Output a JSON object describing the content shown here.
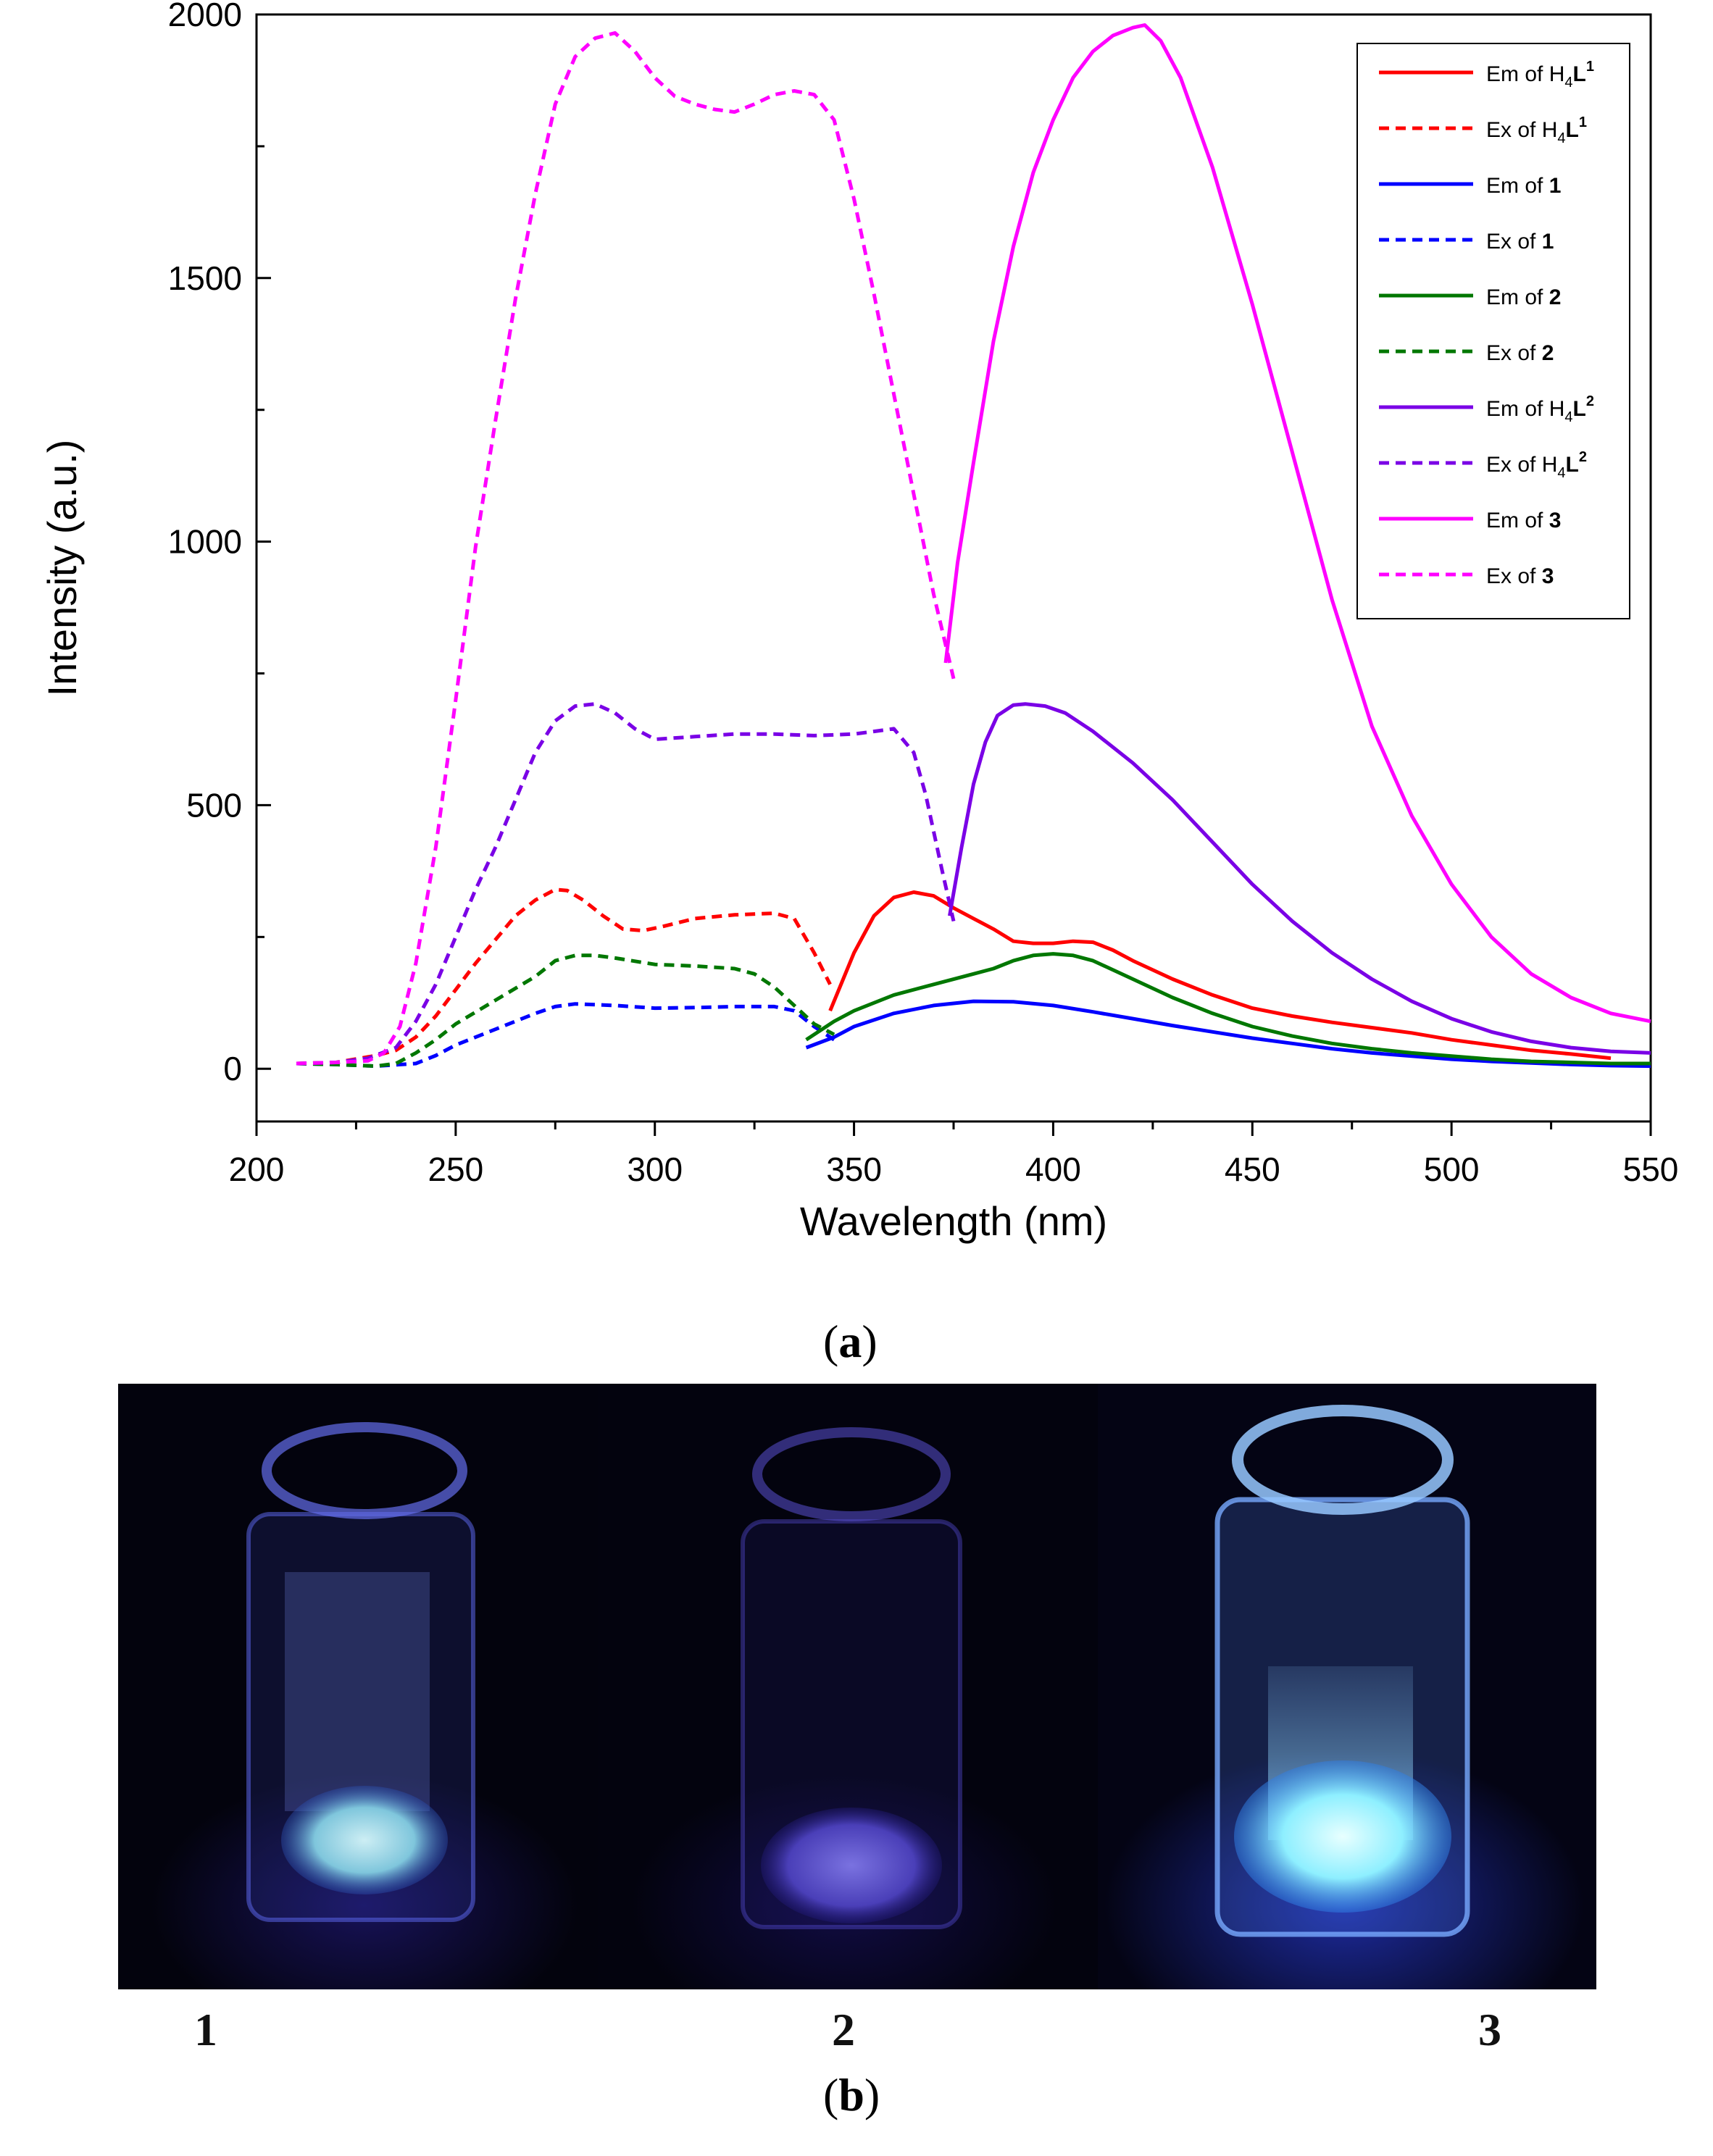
{
  "chart_data": {
    "type": "line",
    "xlabel": "Wavelength (nm)",
    "ylabel": "Intensity (a.u.)",
    "xlim": [
      200,
      550
    ],
    "ylim": [
      -100,
      2000
    ],
    "xticks": [
      200,
      250,
      300,
      350,
      400,
      450,
      500,
      550
    ],
    "yticks": [
      0,
      500,
      1000,
      1500,
      2000
    ],
    "legend_position": "top-right",
    "grid": false,
    "series": [
      {
        "name": "Em of H4L1",
        "legend": {
          "pre": "Em of H",
          "sub": "4",
          "bold": "L",
          "sup": "1"
        },
        "color": "#ff0000",
        "dash": "solid",
        "x": [
          344,
          350,
          355,
          360,
          365,
          370,
          375,
          380,
          385,
          390,
          395,
          400,
          405,
          410,
          415,
          420,
          430,
          440,
          450,
          460,
          470,
          480,
          490,
          500,
          510,
          520,
          530,
          540
        ],
        "y": [
          110,
          220,
          290,
          325,
          335,
          328,
          305,
          285,
          265,
          242,
          238,
          238,
          242,
          240,
          225,
          205,
          170,
          140,
          115,
          100,
          88,
          78,
          68,
          55,
          45,
          35,
          28,
          20
        ]
      },
      {
        "name": "Ex of H4L1",
        "legend": {
          "pre": "Ex of H",
          "sub": "4",
          "bold": "L",
          "sup": "1"
        },
        "color": "#ff0000",
        "dash": "dashed",
        "x": [
          210,
          220,
          230,
          235,
          240,
          245,
          250,
          255,
          260,
          265,
          270,
          275,
          278,
          282,
          287,
          292,
          297,
          302,
          310,
          320,
          330,
          335,
          340,
          344
        ],
        "y": [
          10,
          12,
          25,
          35,
          60,
          100,
          150,
          200,
          245,
          290,
          320,
          340,
          338,
          320,
          290,
          265,
          262,
          270,
          285,
          292,
          295,
          285,
          220,
          160
        ]
      },
      {
        "name": "Em of 1",
        "legend": {
          "pre": "Em of ",
          "sub": "",
          "bold": "1",
          "sup": ""
        },
        "color": "#0000ff",
        "dash": "solid",
        "x": [
          338,
          345,
          350,
          360,
          370,
          380,
          390,
          400,
          410,
          420,
          430,
          440,
          450,
          460,
          470,
          480,
          490,
          500,
          510,
          520,
          530,
          540,
          550
        ],
        "y": [
          40,
          60,
          80,
          105,
          120,
          128,
          127,
          120,
          108,
          95,
          82,
          70,
          58,
          48,
          38,
          30,
          24,
          18,
          14,
          11,
          8,
          6,
          5
        ]
      },
      {
        "name": "Ex of 1",
        "legend": {
          "pre": "Ex of ",
          "sub": "",
          "bold": "1",
          "sup": ""
        },
        "color": "#0000ff",
        "dash": "dashed",
        "x": [
          210,
          220,
          230,
          240,
          245,
          250,
          260,
          270,
          275,
          280,
          290,
          300,
          310,
          320,
          330,
          335,
          340,
          345
        ],
        "y": [
          10,
          8,
          5,
          10,
          25,
          45,
          75,
          105,
          118,
          123,
          120,
          115,
          116,
          118,
          118,
          110,
          80,
          55
        ]
      },
      {
        "name": "Em of 2",
        "legend": {
          "pre": "Em of ",
          "sub": "",
          "bold": "2",
          "sup": ""
        },
        "color": "#007700",
        "dash": "solid",
        "x": [
          338,
          345,
          350,
          360,
          370,
          380,
          385,
          390,
          395,
          400,
          405,
          410,
          420,
          430,
          440,
          450,
          460,
          470,
          480,
          490,
          500,
          510,
          520,
          530,
          540,
          550
        ],
        "y": [
          55,
          90,
          110,
          140,
          160,
          180,
          190,
          205,
          215,
          218,
          215,
          205,
          170,
          135,
          105,
          80,
          62,
          48,
          38,
          30,
          24,
          18,
          14,
          12,
          10,
          10
        ]
      },
      {
        "name": "Ex of 2",
        "legend": {
          "pre": "Ex of ",
          "sub": "",
          "bold": "2",
          "sup": ""
        },
        "color": "#007700",
        "dash": "dashed",
        "x": [
          210,
          220,
          230,
          235,
          240,
          245,
          250,
          260,
          270,
          275,
          280,
          285,
          290,
          300,
          310,
          320,
          325,
          330,
          335,
          340,
          345
        ],
        "y": [
          10,
          8,
          5,
          10,
          30,
          55,
          85,
          130,
          175,
          205,
          215,
          215,
          210,
          198,
          195,
          190,
          180,
          155,
          120,
          85,
          65
        ]
      },
      {
        "name": "Em of H4L2",
        "legend": {
          "pre": "Em of H",
          "sub": "4",
          "bold": "L",
          "sup": "2"
        },
        "color": "#7a00e6",
        "dash": "solid",
        "x": [
          374,
          377,
          380,
          383,
          386,
          390,
          393,
          398,
          403,
          410,
          420,
          430,
          440,
          450,
          460,
          470,
          480,
          490,
          500,
          510,
          520,
          530,
          540,
          550
        ],
        "y": [
          290,
          420,
          540,
          620,
          670,
          690,
          692,
          688,
          675,
          640,
          580,
          510,
          430,
          350,
          280,
          220,
          170,
          128,
          95,
          70,
          52,
          40,
          33,
          30
        ]
      },
      {
        "name": "Ex of H4L2",
        "legend": {
          "pre": "Ex of H",
          "sub": "4",
          "bold": "L",
          "sup": "2"
        },
        "color": "#7a00e6",
        "dash": "dashed",
        "x": [
          210,
          220,
          228,
          235,
          240,
          245,
          250,
          255,
          260,
          265,
          270,
          275,
          280,
          285,
          290,
          295,
          300,
          310,
          320,
          330,
          340,
          350,
          355,
          360,
          365,
          368,
          372,
          375
        ],
        "y": [
          10,
          12,
          20,
          40,
          90,
          160,
          250,
          340,
          420,
          510,
          600,
          660,
          688,
          692,
          675,
          645,
          625,
          630,
          635,
          635,
          632,
          635,
          640,
          645,
          600,
          520,
          380,
          280
        ]
      },
      {
        "name": "Em of 3",
        "legend": {
          "pre": "Em of ",
          "sub": "",
          "bold": "3",
          "sup": ""
        },
        "color": "#ff00ff",
        "dash": "solid",
        "x": [
          373,
          376,
          380,
          385,
          390,
          395,
          400,
          405,
          410,
          415,
          420,
          423,
          427,
          432,
          440,
          450,
          460,
          470,
          480,
          490,
          500,
          510,
          520,
          530,
          540,
          550
        ],
        "y": [
          770,
          960,
          1150,
          1380,
          1560,
          1700,
          1800,
          1880,
          1930,
          1960,
          1975,
          1980,
          1950,
          1880,
          1710,
          1450,
          1170,
          890,
          650,
          480,
          350,
          250,
          180,
          135,
          105,
          90
        ]
      },
      {
        "name": "Ex of 3",
        "legend": {
          "pre": "Ex of ",
          "sub": "",
          "bold": "3",
          "sup": ""
        },
        "color": "#ff00ff",
        "dash": "dashed",
        "x": [
          210,
          220,
          228,
          232,
          236,
          240,
          245,
          250,
          255,
          260,
          265,
          270,
          275,
          280,
          285,
          290,
          295,
          300,
          305,
          310,
          315,
          320,
          325,
          330,
          335,
          340,
          345,
          350,
          355,
          360,
          365,
          370,
          375
        ],
        "y": [
          10,
          12,
          15,
          30,
          80,
          200,
          420,
          700,
          990,
          1230,
          1460,
          1660,
          1830,
          1920,
          1955,
          1965,
          1930,
          1880,
          1845,
          1830,
          1820,
          1815,
          1830,
          1848,
          1855,
          1848,
          1800,
          1650,
          1470,
          1280,
          1090,
          900,
          740
        ]
      }
    ]
  },
  "captions": {
    "panel_a_open": "(",
    "panel_a_letter": "a",
    "panel_a_close": ")",
    "panel_b_open": "(",
    "panel_b_letter": "b",
    "panel_b_close": ")"
  },
  "photo": {
    "vials": [
      {
        "label": "1",
        "glow": "#9fd8e8"
      },
      {
        "label": "2",
        "glow": "#6a5fd6"
      },
      {
        "label": "3",
        "glow": "#aef3ff"
      }
    ]
  }
}
